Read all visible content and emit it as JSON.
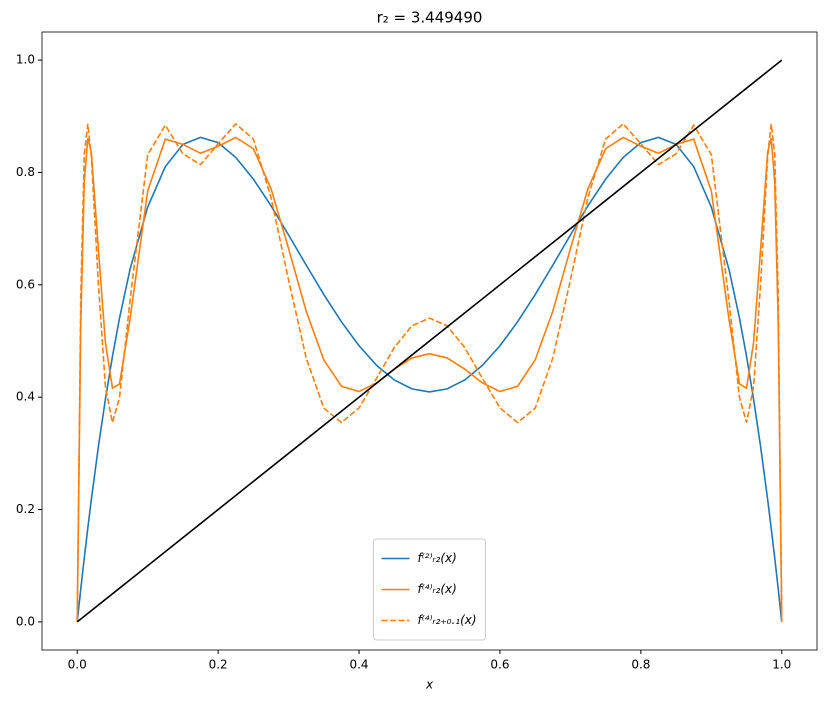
{
  "chart_data": {
    "type": "line",
    "title": "r₂ = 3.449490",
    "xlabel": "x",
    "x": [
      0,
      0.005,
      0.01,
      0.015,
      0.02,
      0.03,
      0.04,
      0.05,
      0.06,
      0.075,
      0.1,
      0.125,
      0.15,
      0.175,
      0.2,
      0.225,
      0.25,
      0.275,
      0.3,
      0.325,
      0.35,
      0.375,
      0.4,
      0.425,
      0.45,
      0.475,
      0.5,
      0.525,
      0.55,
      0.575,
      0.6,
      0.625,
      0.65,
      0.675,
      0.7,
      0.725,
      0.75,
      0.775,
      0.8,
      0.825,
      0.85,
      0.875,
      0.9,
      0.925,
      0.94,
      0.95,
      0.96,
      0.97,
      0.98,
      0.985,
      0.99,
      0.995,
      1
    ],
    "series": [
      {
        "name": "f⁽²⁾ᵣ₂(x)",
        "color": "#1f77b4",
        "dash": false,
        "values": [
          0,
          0.0582,
          0.1138,
          0.1668,
          0.2175,
          0.3115,
          0.3964,
          0.4726,
          0.5405,
          0.6279,
          0.7384,
          0.8104,
          0.8499,
          0.8624,
          0.8531,
          0.8268,
          0.7881,
          0.7408,
          0.6887,
          0.635,
          0.5827,
          0.5341,
          0.4915,
          0.4566,
          0.4307,
          0.4148,
          0.4094,
          0.4148,
          0.4307,
          0.4566,
          0.4915,
          0.5341,
          0.5827,
          0.635,
          0.6887,
          0.7408,
          0.7881,
          0.8268,
          0.8531,
          0.8624,
          0.8499,
          0.8104,
          0.7384,
          0.6279,
          0.5405,
          0.4726,
          0.3964,
          0.3115,
          0.2175,
          0.1668,
          0.1138,
          0.0582,
          0
        ]
      },
      {
        "name": "f⁽⁴⁾ᵣ₂(x)",
        "color": "#ff7f0e",
        "dash": false,
        "values": [
          0,
          0.5288,
          0.7825,
          0.8609,
          0.8363,
          0.664,
          0.4972,
          0.4159,
          0.4235,
          0.5396,
          0.767,
          0.8593,
          0.85,
          0.8341,
          0.8466,
          0.8623,
          0.8424,
          0.7714,
          0.6644,
          0.553,
          0.4664,
          0.4194,
          0.41,
          0.4255,
          0.4499,
          0.4699,
          0.4774,
          0.4699,
          0.4499,
          0.4255,
          0.41,
          0.4194,
          0.4664,
          0.553,
          0.6644,
          0.7714,
          0.8424,
          0.8623,
          0.8466,
          0.8341,
          0.85,
          0.8593,
          0.767,
          0.5396,
          0.4235,
          0.4159,
          0.4972,
          0.664,
          0.8363,
          0.8609,
          0.7825,
          0.5288,
          0
        ]
      },
      {
        "name": "f⁽⁴⁾ᵣ₂₊₀.₁(x)",
        "color": "#ff7f0e",
        "dash": true,
        "values": [
          0,
          0.5787,
          0.8326,
          0.8865,
          0.8291,
          0.6025,
          0.4186,
          0.3548,
          0.3993,
          0.5725,
          0.8316,
          0.8841,
          0.8332,
          0.814,
          0.851,
          0.8865,
          0.8595,
          0.7558,
          0.6084,
          0.4696,
          0.3805,
          0.3549,
          0.3809,
          0.4338,
          0.4883,
          0.527,
          0.5408,
          0.527,
          0.4883,
          0.4338,
          0.3809,
          0.3549,
          0.3805,
          0.4696,
          0.6084,
          0.7558,
          0.8595,
          0.8865,
          0.851,
          0.814,
          0.8332,
          0.8841,
          0.8316,
          0.5725,
          0.3993,
          0.3548,
          0.4186,
          0.6025,
          0.8291,
          0.8865,
          0.8326,
          0.5787,
          0
        ]
      },
      {
        "color": "#000000",
        "dash": false,
        "x": [
          0,
          1
        ],
        "values": [
          0,
          1
        ]
      }
    ],
    "xlim": [
      -0.05,
      1.05
    ],
    "ylim": [
      -0.05,
      1.05
    ],
    "xticks": [
      {
        "value": 0,
        "label": "0.0"
      },
      {
        "value": 0.2,
        "label": "0.2"
      },
      {
        "value": 0.4,
        "label": "0.4"
      },
      {
        "value": 0.6,
        "label": "0.6"
      },
      {
        "value": 0.8,
        "label": "0.8"
      },
      {
        "value": 1,
        "label": "1.0"
      }
    ],
    "yticks": [
      {
        "value": 0,
        "label": "0.0"
      },
      {
        "value": 0.2,
        "label": "0.2"
      },
      {
        "value": 0.4,
        "label": "0.4"
      },
      {
        "value": 0.6,
        "label": "0.6"
      },
      {
        "value": 0.8,
        "label": "0.8"
      },
      {
        "value": 1,
        "label": "1.0"
      }
    ],
    "grid": false,
    "legend": "lower center"
  }
}
